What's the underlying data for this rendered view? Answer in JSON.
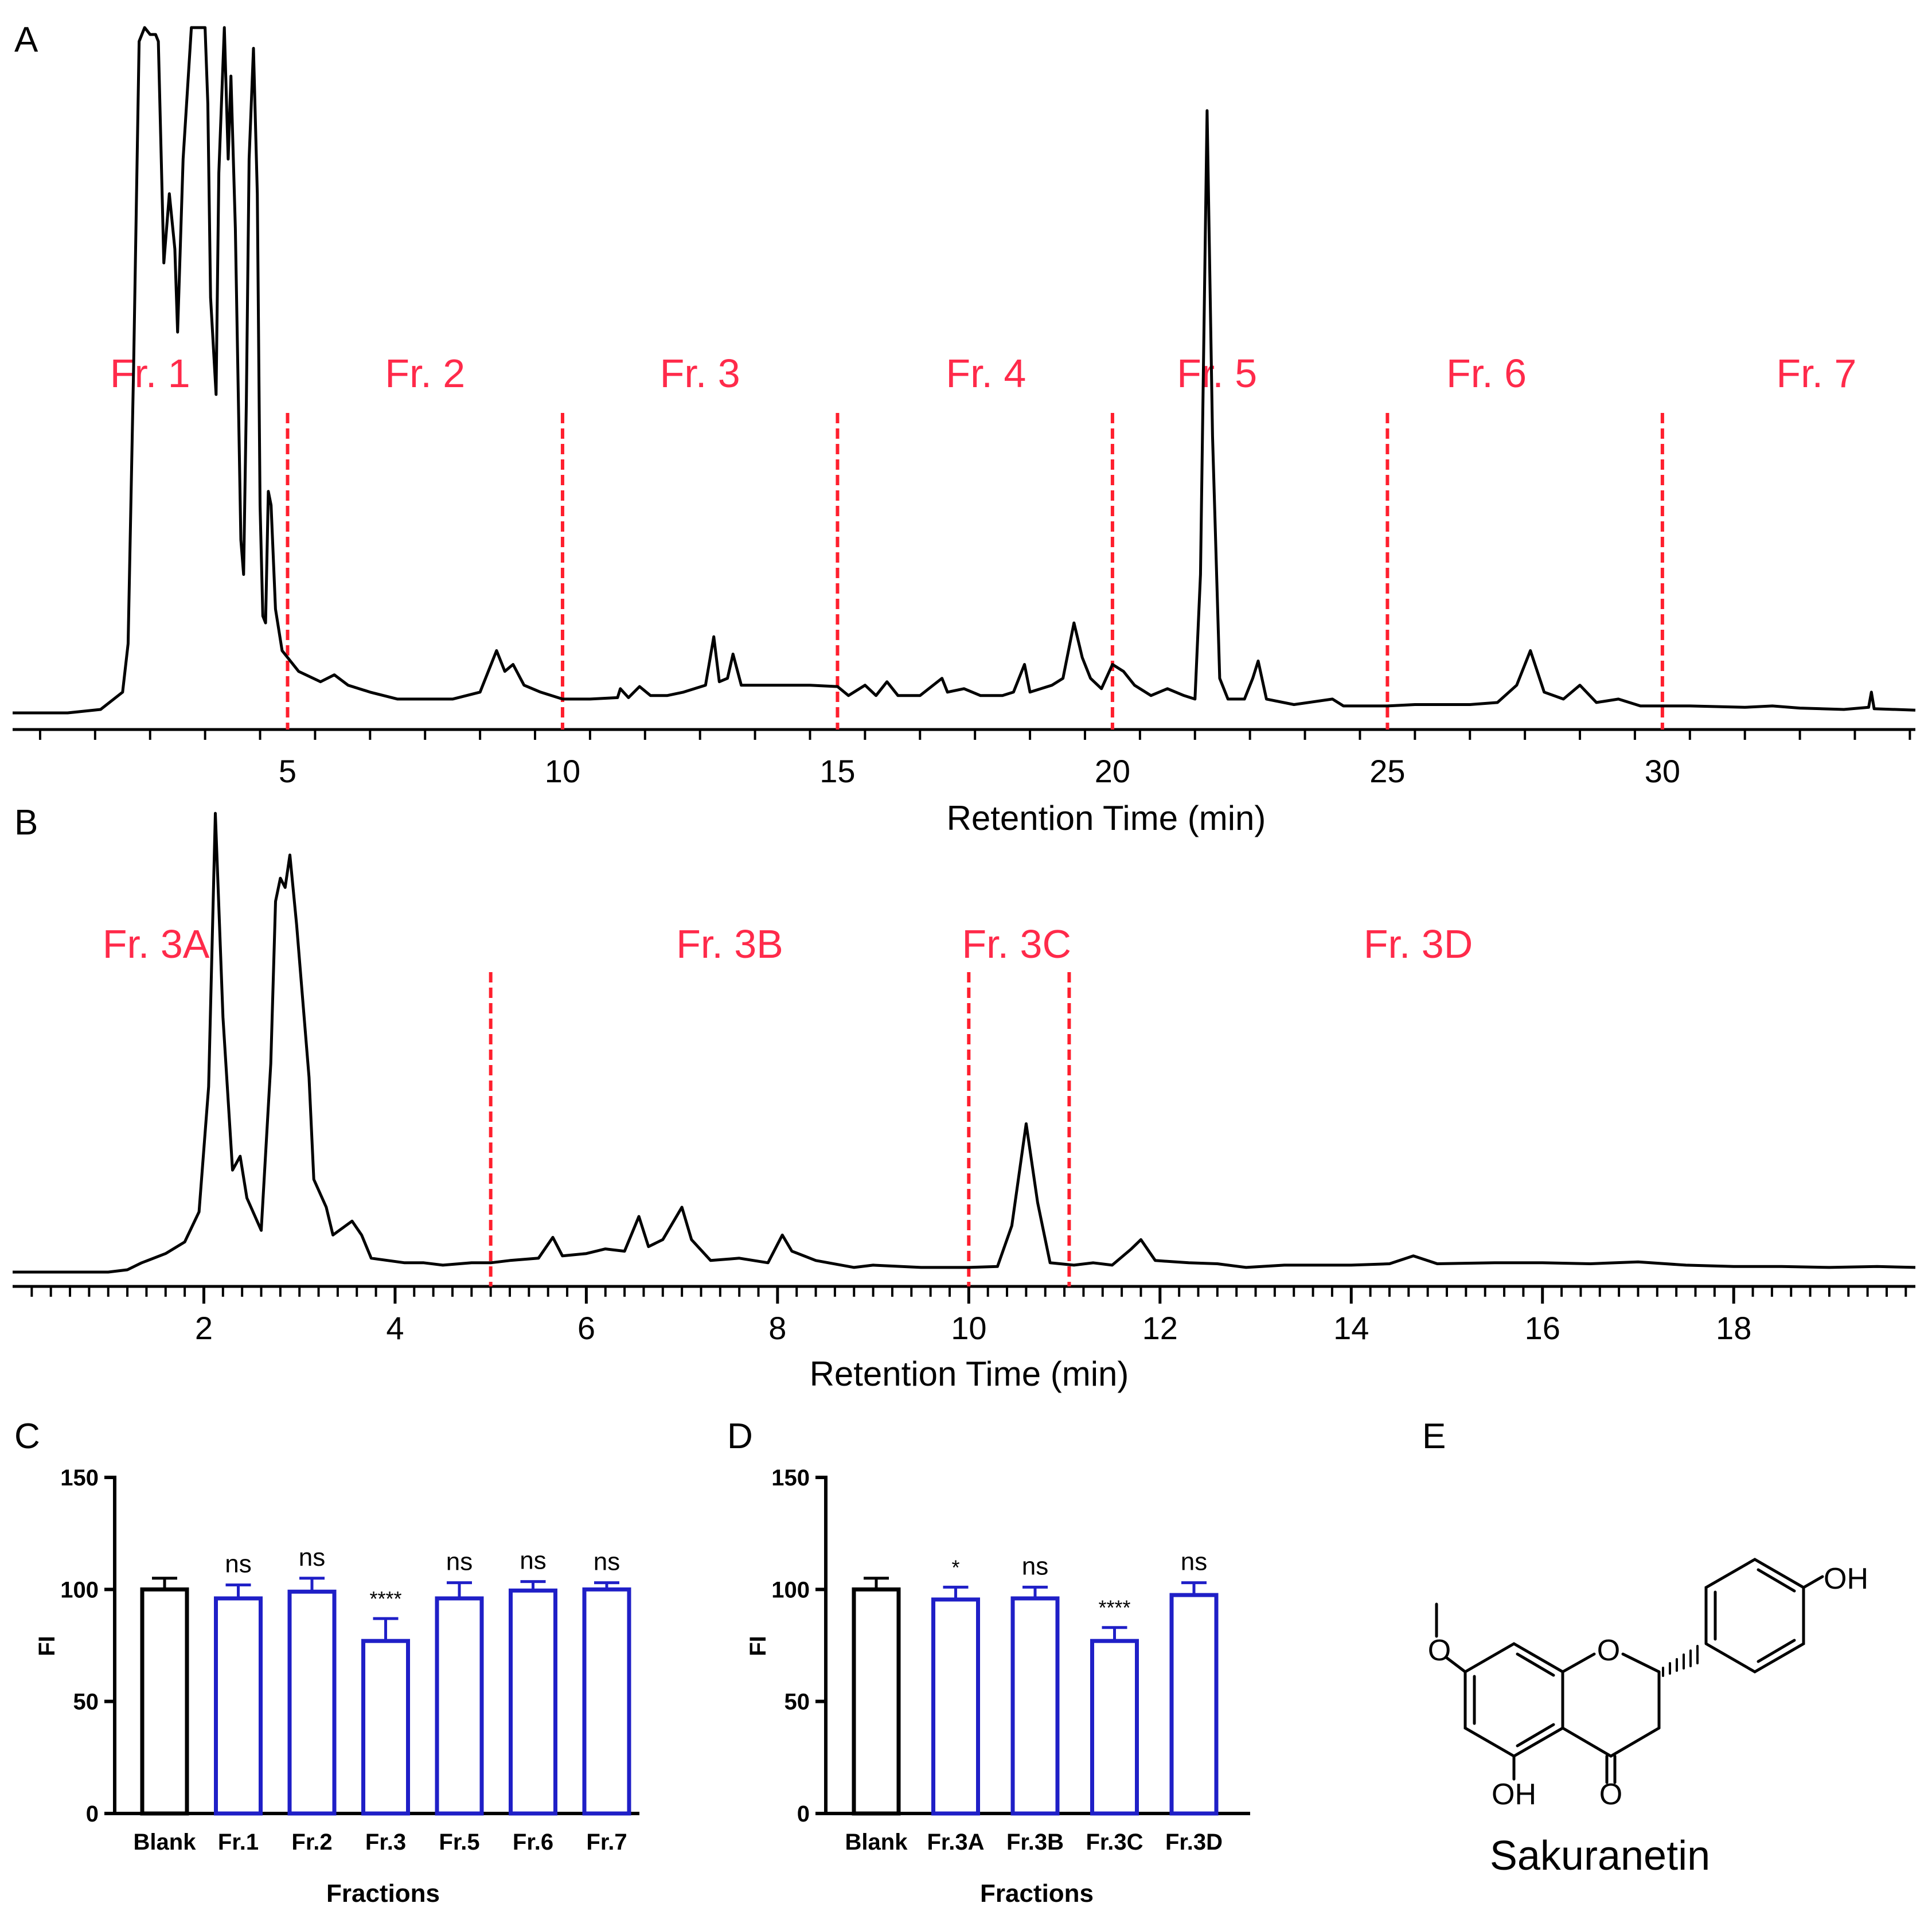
{
  "colors": {
    "trace": "#000000",
    "divider": "#ff1f2d",
    "label": "#ff2a4a",
    "bar_blank": "#000000",
    "bar_fraction": "#1f1fc7",
    "text": "#000000"
  },
  "panel_a": {
    "letter": "A",
    "xlabel": "Retention Time (min)",
    "ticks": [
      "5",
      "10",
      "15",
      "20",
      "25",
      "30"
    ],
    "fractions": [
      {
        "label": "Fr. 1",
        "x": 2.5
      },
      {
        "label": "Fr. 2",
        "x": 7.5
      },
      {
        "label": "Fr. 3",
        "x": 12.5
      },
      {
        "label": "Fr. 4",
        "x": 17.7
      },
      {
        "label": "Fr. 5",
        "x": 21.9
      },
      {
        "label": "Fr. 6",
        "x": 26.8
      },
      {
        "label": "Fr. 7",
        "x": 32.8
      }
    ]
  },
  "panel_b": {
    "letter": "B",
    "xlabel": "Retention Time (min)",
    "ticks": [
      "2",
      "4",
      "6",
      "8",
      "10",
      "12",
      "14",
      "16",
      "18"
    ],
    "fractions": [
      {
        "label": "Fr. 3A",
        "x": 1.5
      },
      {
        "label": "Fr. 3B",
        "x": 7.5
      },
      {
        "label": "Fr. 3C",
        "x": 10.5
      },
      {
        "label": "Fr. 3D",
        "x": 14.7
      }
    ]
  },
  "panel_c": {
    "letter": "C",
    "ylabel": "FI",
    "xlabel": "Fractions",
    "yticks": [
      "0",
      "50",
      "100",
      "150"
    ],
    "categories": [
      "Blank",
      "Fr.1",
      "Fr.2",
      "Fr.3",
      "Fr.5",
      "Fr.6",
      "Fr.7"
    ],
    "significance": [
      "",
      "ns",
      "ns",
      "****",
      "ns",
      "ns",
      "ns"
    ]
  },
  "panel_d": {
    "letter": "D",
    "ylabel": "FI",
    "xlabel": "Fractions",
    "yticks": [
      "0",
      "50",
      "100",
      "150"
    ],
    "categories": [
      "Blank",
      "Fr.3A",
      "Fr.3B",
      "Fr.3C",
      "Fr.3D"
    ],
    "significance": [
      "",
      "*",
      "ns",
      "****",
      "ns"
    ]
  },
  "panel_e": {
    "letter": "E",
    "compound": "Sakuranetin",
    "atoms": {
      "oh_top": "OH",
      "ring_o": "O",
      "oh_bottom": "OH",
      "ketone_o": "O"
    }
  },
  "chart_data": [
    {
      "type": "line",
      "panel": "A",
      "xlabel": "Retention Time (min)",
      "xlim": [
        0,
        34.6
      ],
      "ylim": [
        0,
        1
      ],
      "grid": false,
      "divider_lines_x": [
        5,
        10,
        15,
        20,
        25,
        30
      ],
      "series": [
        {
          "points": [
            [
              0,
              0.0
            ],
            [
              1.0,
              0.0
            ],
            [
              1.6,
              0.005
            ],
            [
              2.0,
              0.03
            ],
            [
              2.1,
              0.1
            ],
            [
              2.2,
              0.5
            ],
            [
              2.3,
              0.97
            ],
            [
              2.4,
              0.99
            ],
            [
              2.5,
              0.98
            ],
            [
              2.6,
              0.98
            ],
            [
              2.65,
              0.97
            ],
            [
              2.75,
              0.65
            ],
            [
              2.85,
              0.75
            ],
            [
              2.95,
              0.67
            ],
            [
              3.0,
              0.55
            ],
            [
              3.1,
              0.8
            ],
            [
              3.25,
              0.99
            ],
            [
              3.4,
              0.99
            ],
            [
              3.5,
              0.99
            ],
            [
              3.55,
              0.88
            ],
            [
              3.6,
              0.6
            ],
            [
              3.7,
              0.46
            ],
            [
              3.75,
              0.78
            ],
            [
              3.85,
              0.99
            ],
            [
              3.92,
              0.8
            ],
            [
              3.97,
              0.92
            ],
            [
              4.05,
              0.7
            ],
            [
              4.15,
              0.25
            ],
            [
              4.2,
              0.2
            ],
            [
              4.25,
              0.45
            ],
            [
              4.3,
              0.8
            ],
            [
              4.38,
              0.96
            ],
            [
              4.45,
              0.75
            ],
            [
              4.5,
              0.3
            ],
            [
              4.55,
              0.14
            ],
            [
              4.6,
              0.13
            ],
            [
              4.65,
              0.32
            ],
            [
              4.7,
              0.3
            ],
            [
              4.78,
              0.15
            ],
            [
              4.9,
              0.09
            ],
            [
              5.2,
              0.06
            ],
            [
              5.6,
              0.045
            ],
            [
              5.85,
              0.055
            ],
            [
              6.1,
              0.04
            ],
            [
              6.5,
              0.03
            ],
            [
              7.0,
              0.02
            ],
            [
              8.0,
              0.02
            ],
            [
              8.5,
              0.03
            ],
            [
              8.8,
              0.09
            ],
            [
              8.95,
              0.06
            ],
            [
              9.1,
              0.07
            ],
            [
              9.3,
              0.04
            ],
            [
              9.6,
              0.03
            ],
            [
              10.0,
              0.02
            ],
            [
              10.5,
              0.02
            ],
            [
              11.0,
              0.022
            ],
            [
              11.05,
              0.035
            ],
            [
              11.2,
              0.022
            ],
            [
              11.4,
              0.038
            ],
            [
              11.6,
              0.025
            ],
            [
              11.9,
              0.025
            ],
            [
              12.2,
              0.03
            ],
            [
              12.6,
              0.04
            ],
            [
              12.75,
              0.11
            ],
            [
              12.85,
              0.045
            ],
            [
              13.0,
              0.05
            ],
            [
              13.1,
              0.085
            ],
            [
              13.25,
              0.04
            ],
            [
              13.8,
              0.04
            ],
            [
              14.5,
              0.04
            ],
            [
              15.0,
              0.038
            ],
            [
              15.2,
              0.025
            ],
            [
              15.5,
              0.04
            ],
            [
              15.7,
              0.025
            ],
            [
              15.9,
              0.045
            ],
            [
              16.1,
              0.025
            ],
            [
              16.5,
              0.025
            ],
            [
              16.9,
              0.05
            ],
            [
              17.0,
              0.03
            ],
            [
              17.3,
              0.035
            ],
            [
              17.6,
              0.025
            ],
            [
              18.0,
              0.025
            ],
            [
              18.2,
              0.03
            ],
            [
              18.4,
              0.07
            ],
            [
              18.5,
              0.03
            ],
            [
              18.9,
              0.04
            ],
            [
              19.1,
              0.05
            ],
            [
              19.3,
              0.13
            ],
            [
              19.45,
              0.08
            ],
            [
              19.6,
              0.05
            ],
            [
              19.8,
              0.035
            ],
            [
              20.0,
              0.07
            ],
            [
              20.2,
              0.06
            ],
            [
              20.4,
              0.04
            ],
            [
              20.7,
              0.025
            ],
            [
              21.0,
              0.035
            ],
            [
              21.3,
              0.025
            ],
            [
              21.5,
              0.02
            ],
            [
              21.6,
              0.2
            ],
            [
              21.72,
              0.87
            ],
            [
              21.82,
              0.4
            ],
            [
              21.95,
              0.05
            ],
            [
              22.1,
              0.02
            ],
            [
              22.4,
              0.02
            ],
            [
              22.55,
              0.05
            ],
            [
              22.65,
              0.075
            ],
            [
              22.8,
              0.02
            ],
            [
              23.3,
              0.012
            ],
            [
              24.0,
              0.02
            ],
            [
              24.2,
              0.01
            ],
            [
              25.0,
              0.01
            ],
            [
              25.5,
              0.012
            ],
            [
              26.5,
              0.012
            ],
            [
              27.0,
              0.015
            ],
            [
              27.35,
              0.04
            ],
            [
              27.6,
              0.09
            ],
            [
              27.85,
              0.03
            ],
            [
              28.2,
              0.02
            ],
            [
              28.5,
              0.04
            ],
            [
              28.8,
              0.015
            ],
            [
              29.2,
              0.02
            ],
            [
              29.6,
              0.01
            ],
            [
              30.5,
              0.01
            ],
            [
              31.5,
              0.008
            ],
            [
              32.0,
              0.01
            ],
            [
              32.5,
              0.007
            ],
            [
              33.3,
              0.005
            ],
            [
              33.75,
              0.008
            ],
            [
              33.8,
              0.03
            ],
            [
              33.85,
              0.006
            ],
            [
              34.6,
              0.004
            ]
          ]
        }
      ]
    },
    {
      "type": "line",
      "panel": "B",
      "xlabel": "Retention Time (min)",
      "xlim": [
        0,
        19.9
      ],
      "ylim": [
        0,
        1
      ],
      "grid": false,
      "divider_lines_x": [
        5,
        10,
        11.05
      ],
      "series": [
        {
          "points": [
            [
              0,
              0.0
            ],
            [
              1.0,
              0.0
            ],
            [
              1.2,
              0.005
            ],
            [
              1.35,
              0.02
            ],
            [
              1.6,
              0.04
            ],
            [
              1.8,
              0.065
            ],
            [
              1.95,
              0.13
            ],
            [
              2.05,
              0.4
            ],
            [
              2.12,
              0.99
            ],
            [
              2.2,
              0.55
            ],
            [
              2.3,
              0.22
            ],
            [
              2.38,
              0.25
            ],
            [
              2.45,
              0.16
            ],
            [
              2.6,
              0.09
            ],
            [
              2.7,
              0.45
            ],
            [
              2.75,
              0.8
            ],
            [
              2.8,
              0.85
            ],
            [
              2.85,
              0.83
            ],
            [
              2.9,
              0.9
            ],
            [
              2.97,
              0.75
            ],
            [
              3.1,
              0.42
            ],
            [
              3.15,
              0.2
            ],
            [
              3.28,
              0.14
            ],
            [
              3.35,
              0.08
            ],
            [
              3.55,
              0.11
            ],
            [
              3.65,
              0.08
            ],
            [
              3.75,
              0.03
            ],
            [
              4.1,
              0.02
            ],
            [
              4.3,
              0.02
            ],
            [
              4.5,
              0.015
            ],
            [
              4.8,
              0.02
            ],
            [
              5.0,
              0.02
            ],
            [
              5.2,
              0.025
            ],
            [
              5.5,
              0.03
            ],
            [
              5.65,
              0.075
            ],
            [
              5.75,
              0.035
            ],
            [
              6.0,
              0.04
            ],
            [
              6.2,
              0.05
            ],
            [
              6.4,
              0.045
            ],
            [
              6.55,
              0.12
            ],
            [
              6.65,
              0.055
            ],
            [
              6.8,
              0.07
            ],
            [
              7.0,
              0.14
            ],
            [
              7.1,
              0.07
            ],
            [
              7.3,
              0.025
            ],
            [
              7.6,
              0.03
            ],
            [
              7.9,
              0.02
            ],
            [
              8.05,
              0.08
            ],
            [
              8.15,
              0.045
            ],
            [
              8.4,
              0.025
            ],
            [
              8.8,
              0.01
            ],
            [
              9.0,
              0.015
            ],
            [
              9.5,
              0.01
            ],
            [
              10.0,
              0.01
            ],
            [
              10.3,
              0.012
            ],
            [
              10.45,
              0.1
            ],
            [
              10.6,
              0.32
            ],
            [
              10.72,
              0.15
            ],
            [
              10.85,
              0.02
            ],
            [
              11.1,
              0.015
            ],
            [
              11.3,
              0.02
            ],
            [
              11.5,
              0.015
            ],
            [
              11.7,
              0.05
            ],
            [
              11.8,
              0.07
            ],
            [
              11.95,
              0.025
            ],
            [
              12.3,
              0.02
            ],
            [
              12.6,
              0.018
            ],
            [
              12.9,
              0.01
            ],
            [
              13.3,
              0.015
            ],
            [
              14.0,
              0.015
            ],
            [
              14.4,
              0.018
            ],
            [
              14.65,
              0.035
            ],
            [
              14.9,
              0.018
            ],
            [
              15.5,
              0.02
            ],
            [
              16.0,
              0.02
            ],
            [
              16.5,
              0.018
            ],
            [
              17.0,
              0.022
            ],
            [
              17.5,
              0.015
            ],
            [
              18.0,
              0.012
            ],
            [
              18.5,
              0.012
            ],
            [
              19.0,
              0.01
            ],
            [
              19.5,
              0.012
            ],
            [
              19.9,
              0.01
            ]
          ]
        }
      ]
    },
    {
      "type": "bar",
      "panel": "C",
      "title": "",
      "xlabel": "Fractions",
      "ylabel": "FI",
      "ylim": [
        0,
        150
      ],
      "categories": [
        "Blank",
        "Fr.1",
        "Fr.2",
        "Fr.3",
        "Fr.5",
        "Fr.6",
        "Fr.7"
      ],
      "values": [
        100,
        96,
        99,
        77,
        96,
        99.5,
        100
      ],
      "errors": [
        5,
        6,
        6,
        10,
        7,
        4,
        3
      ],
      "annotations": [
        "",
        "ns",
        "ns",
        "****",
        "ns",
        "ns",
        "ns"
      ]
    },
    {
      "type": "bar",
      "panel": "D",
      "title": "",
      "xlabel": "Fractions",
      "ylabel": "FI",
      "ylim": [
        0,
        150
      ],
      "categories": [
        "Blank",
        "Fr.3A",
        "Fr.3B",
        "Fr.3C",
        "Fr.3D"
      ],
      "values": [
        100,
        95.5,
        96,
        77,
        97.5
      ],
      "errors": [
        5,
        5.5,
        5,
        6,
        5.5
      ],
      "annotations": [
        "",
        "*",
        "ns",
        "****",
        "ns"
      ]
    }
  ]
}
